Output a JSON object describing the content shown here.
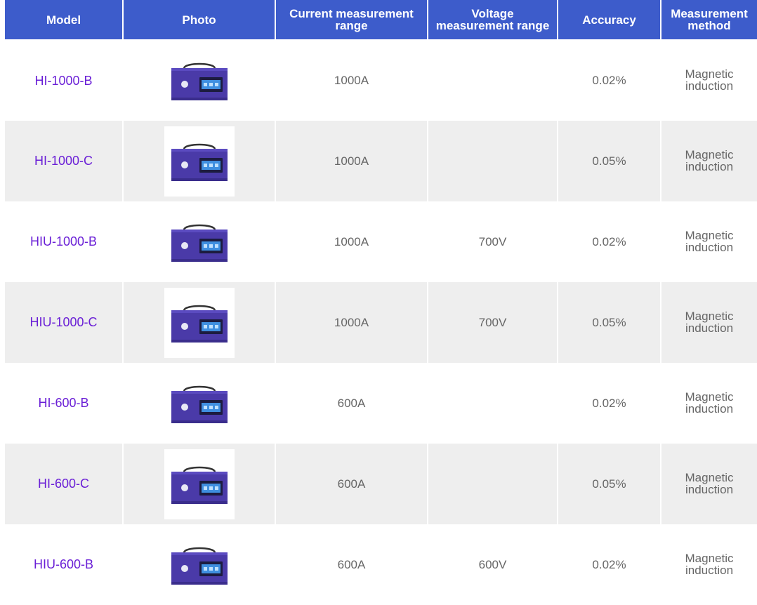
{
  "header": {
    "model": "Model",
    "photo": "Photo",
    "current": "Current measurement range",
    "voltage": "Voltage measurement range",
    "accuracy": "Accuracy",
    "method": "Measurement method"
  },
  "colors": {
    "header_bg": "#3d5ccb",
    "model_link": "#6a1fd6",
    "row_alt_bg": "#eeeeee",
    "device_body": "#4a3aa8"
  },
  "rows": [
    {
      "model": "HI-1000-B",
      "current": "1000A",
      "voltage": "",
      "accuracy": "0.02%",
      "method": "Magnetic induction",
      "photo_icon": "meter-device-icon"
    },
    {
      "model": "HI-1000-C",
      "current": "1000A",
      "voltage": "",
      "accuracy": "0.05%",
      "method": "Magnetic induction",
      "photo_icon": "meter-device-icon"
    },
    {
      "model": "HIU-1000-B",
      "current": "1000A",
      "voltage": "700V",
      "accuracy": "0.02%",
      "method": "Magnetic induction",
      "photo_icon": "meter-device-icon"
    },
    {
      "model": "HIU-1000-C",
      "current": "1000A",
      "voltage": "700V",
      "accuracy": "0.05%",
      "method": "Magnetic induction",
      "photo_icon": "meter-device-icon"
    },
    {
      "model": "HI-600-B",
      "current": "600A",
      "voltage": "",
      "accuracy": "0.02%",
      "method": "Magnetic induction",
      "photo_icon": "meter-device-icon"
    },
    {
      "model": "HI-600-C",
      "current": "600A",
      "voltage": "",
      "accuracy": "0.05%",
      "method": "Magnetic induction",
      "photo_icon": "meter-device-icon"
    },
    {
      "model": "HIU-600-B",
      "current": "600A",
      "voltage": "600V",
      "accuracy": "0.02%",
      "method": "Magnetic induction",
      "photo_icon": "meter-device-icon"
    }
  ]
}
